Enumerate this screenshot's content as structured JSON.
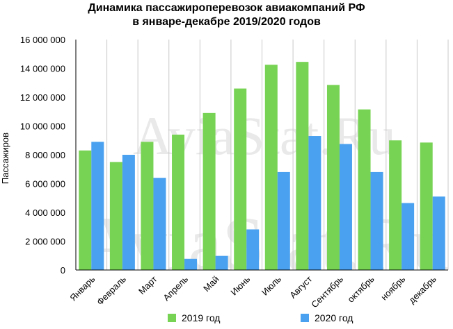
{
  "chart_data": {
    "type": "bar",
    "title_lines": [
      "Динамика пассажироперевозок авиакомпаний РФ",
      "в январе-декабре 2019/2020 годов"
    ],
    "xlabel": "",
    "ylabel": "Пассажиров",
    "ylim": [
      0,
      16000000
    ],
    "yticks": [
      0,
      2000000,
      4000000,
      6000000,
      8000000,
      10000000,
      12000000,
      14000000,
      16000000
    ],
    "ytick_labels": [
      "0",
      "2 000 000",
      "4 000 000",
      "6 000 000",
      "8 000 000",
      "10 000 000",
      "12 000 000",
      "14 000 000",
      "16 000 000"
    ],
    "grid": "vertical",
    "legend_position": "bottom",
    "categories": [
      "Январь",
      "Февраль",
      "Март",
      "Апрель",
      "Май",
      "Июнь",
      "Июль",
      "Август",
      "Сентябрь",
      "октябрь",
      "ноябрь",
      "декабрь"
    ],
    "series": [
      {
        "name": "2019 год",
        "color": "#77d353",
        "values": [
          8300000,
          7500000,
          8900000,
          9400000,
          10900000,
          12600000,
          14250000,
          14450000,
          12850000,
          11150000,
          9000000,
          8850000
        ]
      },
      {
        "name": "2020 год",
        "color": "#4aa1ef",
        "values": [
          8900000,
          8000000,
          6400000,
          780000,
          980000,
          2820000,
          6800000,
          9300000,
          8750000,
          6800000,
          4650000,
          5100000
        ]
      }
    ]
  },
  "watermark": "AviaStat.Ru"
}
